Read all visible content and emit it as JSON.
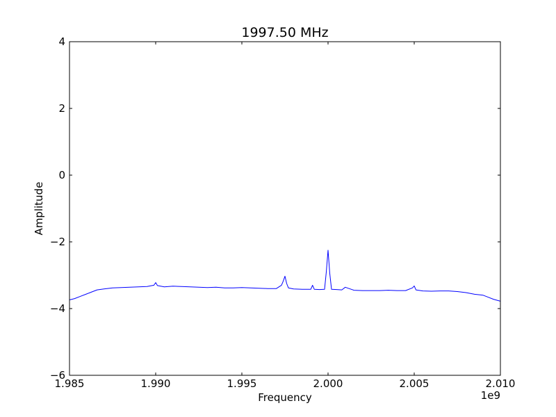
{
  "chart_data": {
    "type": "line",
    "title": "1997.50 MHz",
    "xlabel": "Frequency",
    "ylabel": "Amplitude",
    "x_offset_label": "1e9",
    "xlim": [
      1.985,
      2.01
    ],
    "ylim": [
      -6,
      4
    ],
    "x_ticks": [
      1.985,
      1.99,
      1.995,
      2.0,
      2.005,
      2.01
    ],
    "x_tick_labels": [
      "1.985",
      "1.990",
      "1.995",
      "2.000",
      "2.005",
      "2.010"
    ],
    "y_ticks": [
      -6,
      -4,
      -2,
      0,
      2,
      4
    ],
    "y_tick_labels": [
      "−6",
      "−4",
      "−2",
      "0",
      "2",
      "4"
    ],
    "grid": false,
    "line_color": "#0000ff",
    "series": [
      {
        "x": [
          1.985,
          1.9853,
          1.9856,
          1.986,
          1.9863,
          1.9866,
          1.987,
          1.9875,
          1.988,
          1.9885,
          1.989,
          1.9895,
          1.9899,
          1.99,
          1.9901,
          1.9905,
          1.991,
          1.9915,
          1.992,
          1.9925,
          1.993,
          1.9935,
          1.994,
          1.9945,
          1.995,
          1.9955,
          1.996,
          1.9965,
          1.997,
          1.9973,
          1.9974,
          1.9975,
          1.9976,
          1.9977,
          1.998,
          1.9985,
          1.999,
          1.9991,
          1.9992,
          1.9995,
          1.9998,
          1.9999,
          2.0,
          2.0001,
          2.0002,
          2.0005,
          2.0008,
          2.001,
          2.0015,
          2.002,
          2.0025,
          2.003,
          2.0035,
          2.004,
          2.0045,
          2.0049,
          2.005,
          2.0051,
          2.0055,
          2.006,
          2.0065,
          2.007,
          2.0075,
          2.008,
          2.0085,
          2.009,
          2.0093,
          2.0096,
          2.01
        ],
        "y": [
          -3.74,
          -3.7,
          -3.64,
          -3.56,
          -3.5,
          -3.44,
          -3.41,
          -3.38,
          -3.37,
          -3.36,
          -3.35,
          -3.34,
          -3.3,
          -3.22,
          -3.31,
          -3.35,
          -3.33,
          -3.34,
          -3.35,
          -3.36,
          -3.37,
          -3.36,
          -3.38,
          -3.38,
          -3.37,
          -3.38,
          -3.39,
          -3.4,
          -3.4,
          -3.3,
          -3.18,
          -3.03,
          -3.25,
          -3.38,
          -3.41,
          -3.42,
          -3.42,
          -3.3,
          -3.42,
          -3.43,
          -3.42,
          -2.9,
          -2.25,
          -2.95,
          -3.42,
          -3.43,
          -3.44,
          -3.36,
          -3.45,
          -3.46,
          -3.46,
          -3.46,
          -3.45,
          -3.46,
          -3.46,
          -3.38,
          -3.32,
          -3.44,
          -3.47,
          -3.48,
          -3.47,
          -3.47,
          -3.49,
          -3.52,
          -3.57,
          -3.6,
          -3.66,
          -3.72,
          -3.78
        ]
      }
    ]
  }
}
